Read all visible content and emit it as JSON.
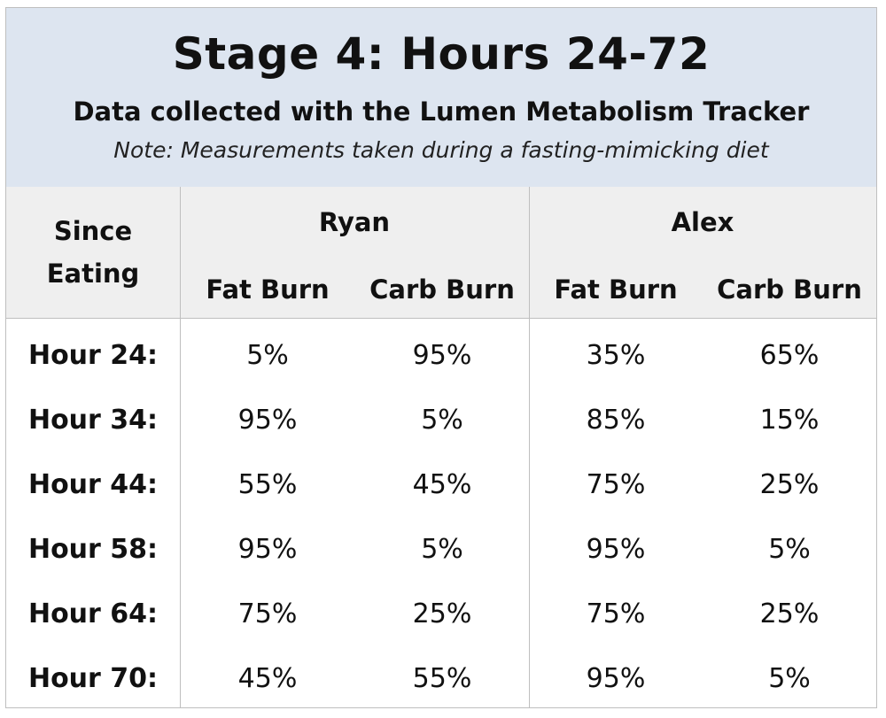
{
  "header": {
    "title": "Stage 4: Hours 24-72",
    "subtitle": "Data collected with the Lumen Metabolism Tracker",
    "note": "Note: Measurements taken during a fasting-mimicking diet"
  },
  "chart_data": {
    "type": "table",
    "row_header_label": [
      "Since",
      "Eating"
    ],
    "groups": [
      {
        "name": "Ryan",
        "columns": [
          "Fat Burn",
          "Carb Burn"
        ]
      },
      {
        "name": "Alex",
        "columns": [
          "Fat Burn",
          "Carb Burn"
        ]
      }
    ],
    "rows": [
      {
        "label": "Hour 24:",
        "values": [
          "5%",
          "95%",
          "35%",
          "65%"
        ]
      },
      {
        "label": "Hour 34:",
        "values": [
          "95%",
          "5%",
          "85%",
          "15%"
        ]
      },
      {
        "label": "Hour 44:",
        "values": [
          "55%",
          "45%",
          "75%",
          "25%"
        ]
      },
      {
        "label": "Hour 58:",
        "values": [
          "95%",
          "5%",
          "95%",
          "5%"
        ]
      },
      {
        "label": "Hour 64:",
        "values": [
          "75%",
          "25%",
          "75%",
          "25%"
        ]
      },
      {
        "label": "Hour 70:",
        "values": [
          "45%",
          "55%",
          "95%",
          "5%"
        ]
      }
    ]
  },
  "colors": {
    "header_background": "#dde5f0",
    "column_header_background": "#efefef",
    "grid_line": "#bfbfbf"
  }
}
